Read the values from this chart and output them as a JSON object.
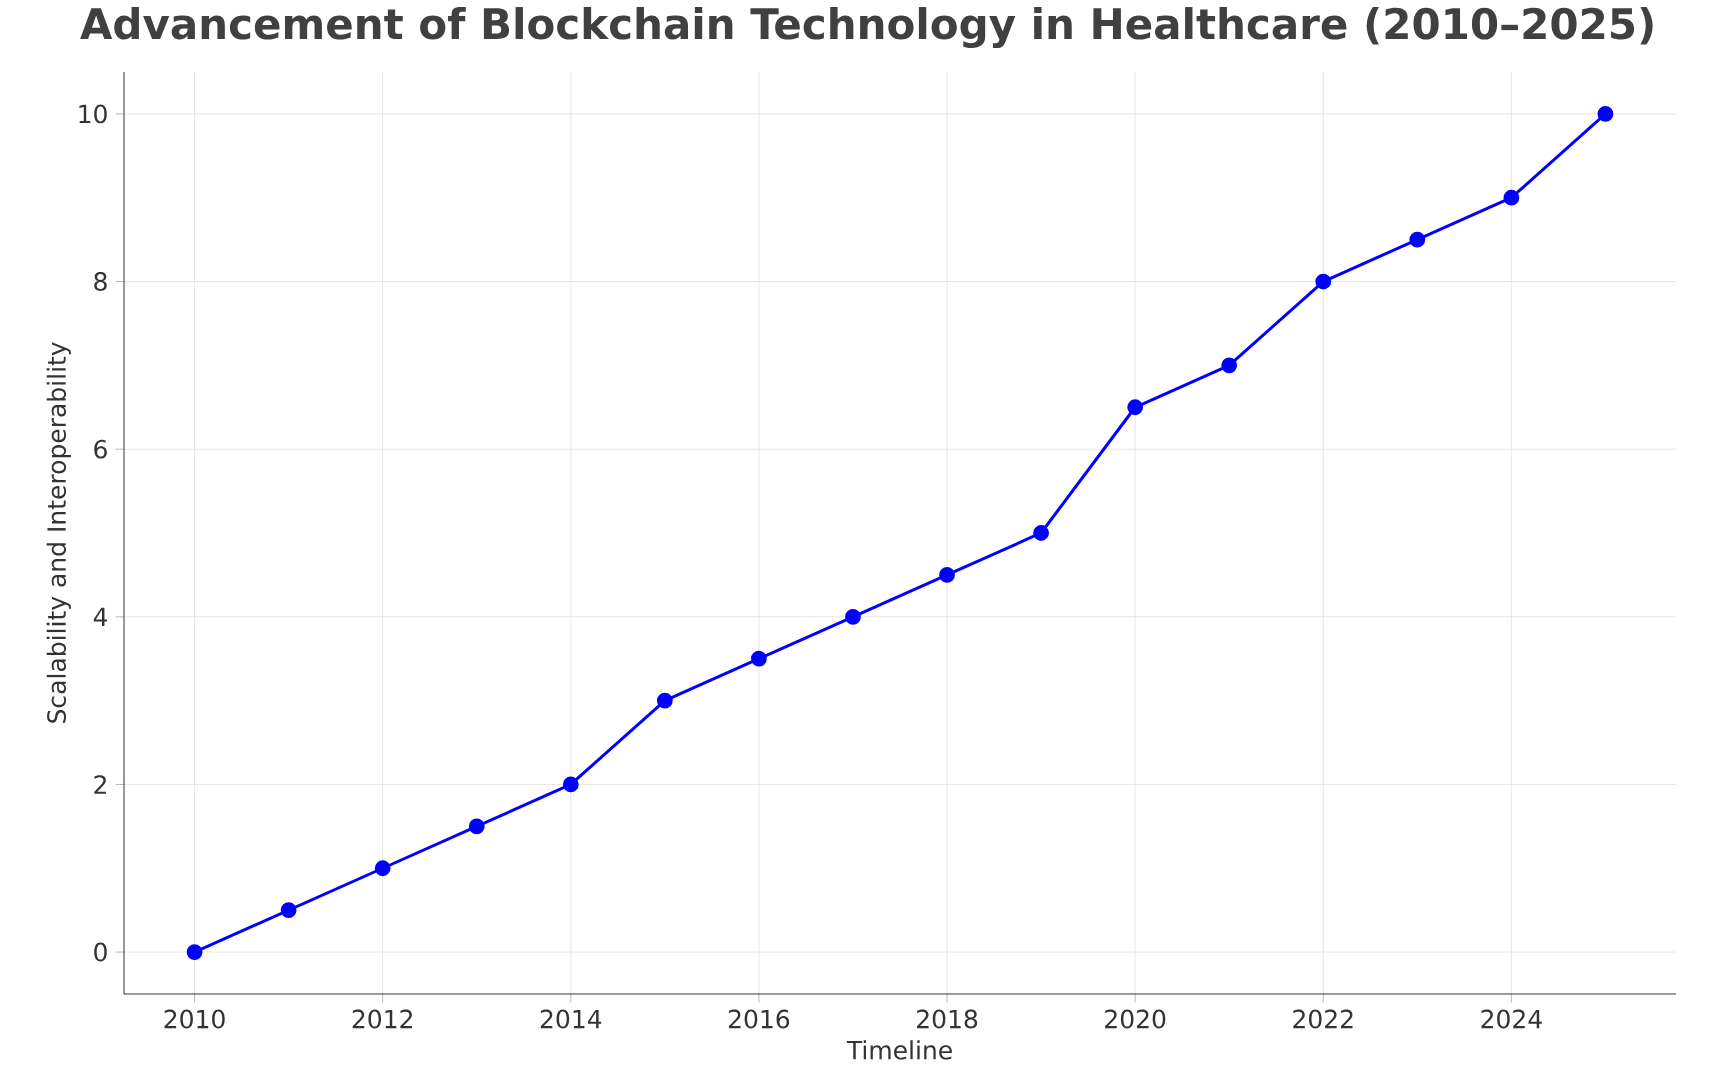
{
  "chart_data": {
    "type": "line",
    "title": "Advancement of Blockchain Technology in Healthcare (2010–2025)",
    "xlabel": "Timeline",
    "ylabel": "Scalability and Interoperability",
    "x": [
      2010,
      2011,
      2012,
      2013,
      2014,
      2015,
      2016,
      2017,
      2018,
      2019,
      2020,
      2021,
      2022,
      2023,
      2024,
      2025
    ],
    "series": [
      {
        "color": "#0000ff",
        "values": [
          0,
          0.5,
          1,
          1.5,
          2,
          3,
          3.5,
          4,
          4.5,
          5,
          6.5,
          7,
          8,
          8.5,
          9,
          10
        ]
      }
    ],
    "xlim": [
      2009.25,
      2025.75
    ],
    "ylim": [
      -0.5,
      10.5
    ],
    "xticks": [
      2010,
      2012,
      2014,
      2016,
      2018,
      2020,
      2022,
      2024
    ],
    "yticks": [
      0,
      2,
      4,
      6,
      8,
      10
    ],
    "grid": true,
    "marker": "circle",
    "line_style": "solid"
  }
}
